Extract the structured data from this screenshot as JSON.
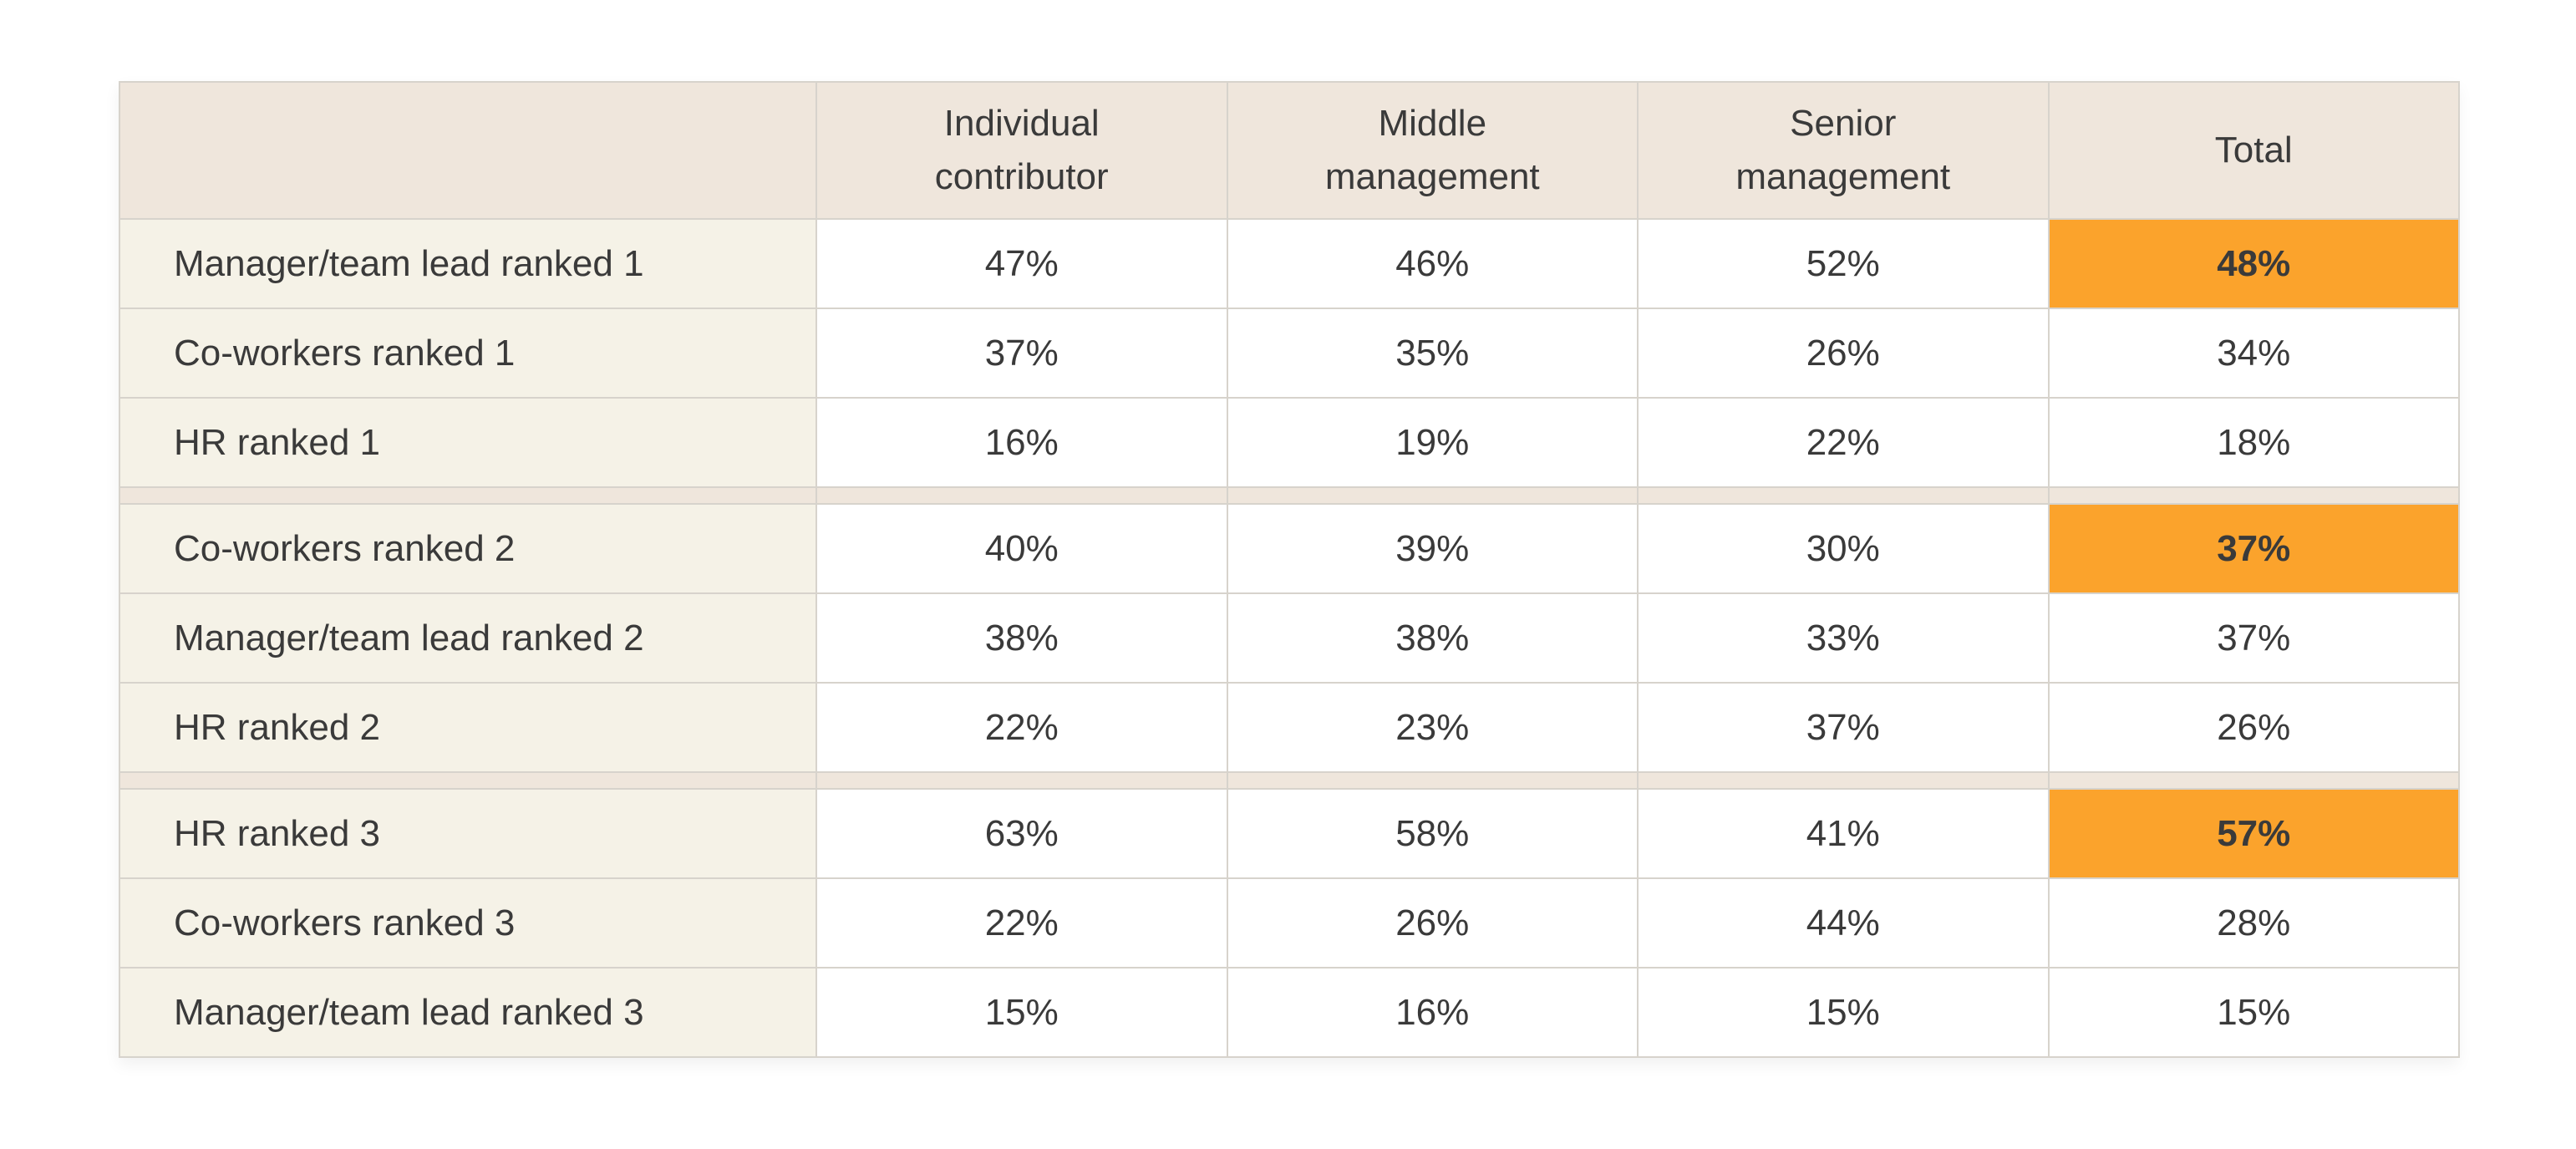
{
  "chart_data": {
    "type": "table",
    "columns": [
      "",
      "Individual contributor",
      "Middle management",
      "Senior management",
      "Total"
    ],
    "groups": [
      {
        "rows": [
          {
            "label": "Manager/team lead ranked 1",
            "values": [
              "47%",
              "46%",
              "52%",
              "48%"
            ],
            "highlight_total": true
          },
          {
            "label": "Co-workers ranked 1",
            "values": [
              "37%",
              "35%",
              "26%",
              "34%"
            ],
            "highlight_total": false
          },
          {
            "label": "HR ranked 1",
            "values": [
              "16%",
              "19%",
              "22%",
              "18%"
            ],
            "highlight_total": false
          }
        ]
      },
      {
        "rows": [
          {
            "label": "Co-workers ranked 2",
            "values": [
              "40%",
              "39%",
              "30%",
              "37%"
            ],
            "highlight_total": true
          },
          {
            "label": "Manager/team lead ranked 2",
            "values": [
              "38%",
              "38%",
              "33%",
              "37%"
            ],
            "highlight_total": false
          },
          {
            "label": "HR ranked 2",
            "values": [
              "22%",
              "23%",
              "37%",
              "26%"
            ],
            "highlight_total": false
          }
        ]
      },
      {
        "rows": [
          {
            "label": "HR ranked 3",
            "values": [
              "63%",
              "58%",
              "41%",
              "57%"
            ],
            "highlight_total": true
          },
          {
            "label": "Co-workers ranked 3",
            "values": [
              "22%",
              "26%",
              "44%",
              "28%"
            ],
            "highlight_total": false
          },
          {
            "label": "Manager/team lead ranked 3",
            "values": [
              "15%",
              "16%",
              "15%",
              "15%"
            ],
            "highlight_total": false
          }
        ]
      }
    ],
    "colors": {
      "header_bg": "#efe6dc",
      "label_bg": "#f5f2e7",
      "highlight": "#fba32c",
      "border": "#d7d3cc"
    }
  }
}
